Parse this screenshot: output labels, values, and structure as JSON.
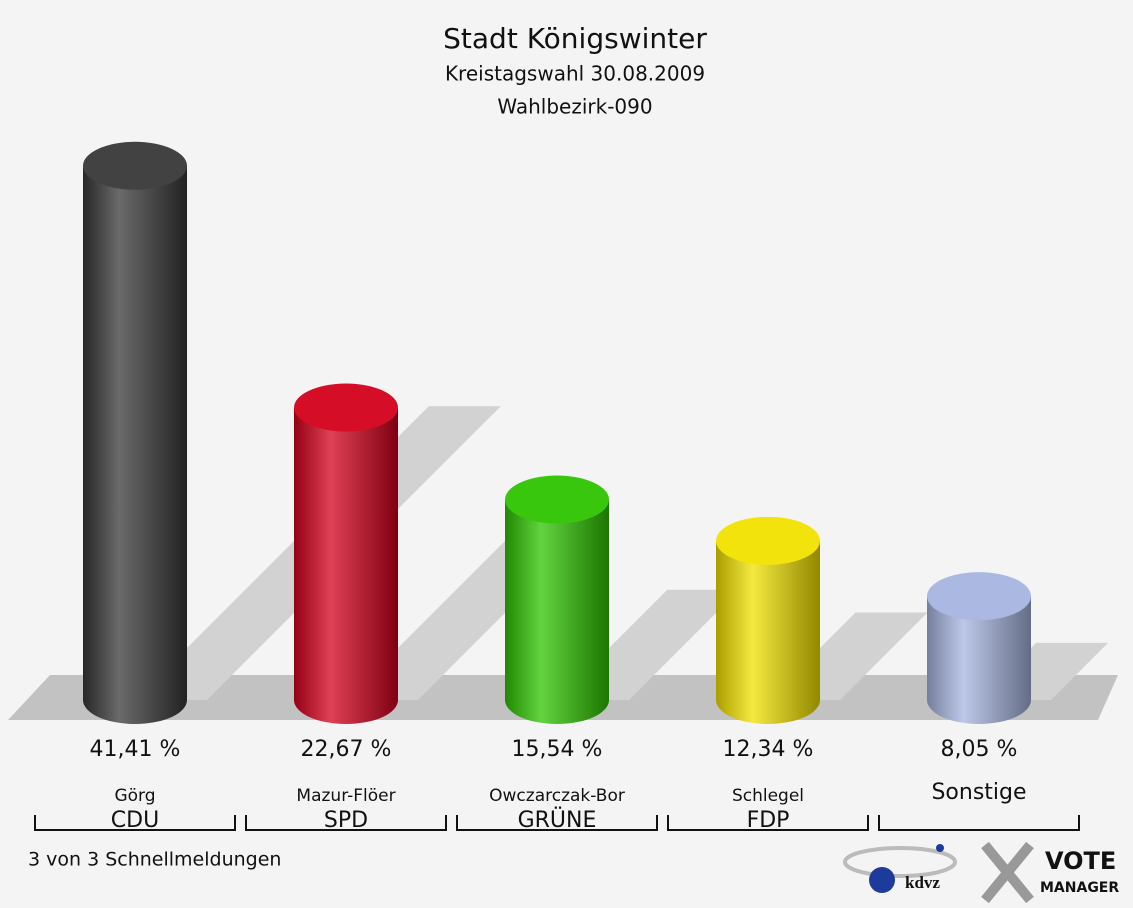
{
  "chart_data": {
    "type": "bar",
    "title": "Stadt Königswinter",
    "subtitles": [
      "Kreistagswahl 30.08.2009",
      "Wahlbezirk-090"
    ],
    "categories": [
      "Görg",
      "Mazur-Flöer",
      "Owczarczak-Bor",
      "Schlegel",
      "Sonstige"
    ],
    "parties": [
      "CDU",
      "SPD",
      "GRÜNE",
      "FDP",
      null
    ],
    "values": [
      41.41,
      22.67,
      15.54,
      12.34,
      8.05
    ],
    "value_labels": [
      "41,41 %",
      "22,67 %",
      "15,54 %",
      "12,34 %",
      "8,05 %"
    ],
    "colors": [
      "#383838",
      "#d4001c",
      "#2fc400",
      "#f2e200",
      "#a7b5e0"
    ],
    "footer": "3 von 3 Schnellmeldungen",
    "logo": [
      "kdvz",
      "VOTE",
      "MANAGER"
    ]
  }
}
